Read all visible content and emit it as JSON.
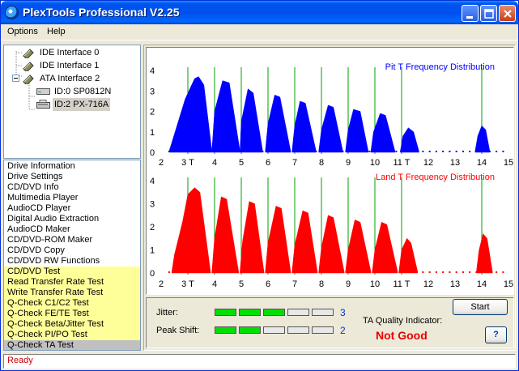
{
  "window": {
    "title": "PlexTools Professional V2.25"
  },
  "menu": [
    {
      "label": "Options",
      "hotkey": "O"
    },
    {
      "label": "Help",
      "hotkey": "H"
    }
  ],
  "tree": [
    {
      "label": "IDE Interface 0",
      "icon": "interface-icon",
      "level": 1
    },
    {
      "label": "IDE Interface 1",
      "icon": "interface-icon",
      "level": 1
    },
    {
      "label": "ATA Interface 2",
      "icon": "interface-icon",
      "level": 0,
      "expanded": true
    },
    {
      "label": "ID:0  SP0812N",
      "icon": "hard-drive-icon",
      "level": 2
    },
    {
      "label": "ID:2  PX-716A",
      "icon": "optical-drive-icon",
      "level": 2,
      "selected": true
    }
  ],
  "functions": [
    {
      "label": "Drive Information",
      "group": "general"
    },
    {
      "label": "Drive Settings",
      "group": "general"
    },
    {
      "label": "CD/DVD Info",
      "group": "general"
    },
    {
      "label": "Multimedia Player",
      "group": "general"
    },
    {
      "label": "AudioCD Player",
      "group": "general"
    },
    {
      "label": "Digital Audio Extraction",
      "group": "general"
    },
    {
      "label": "AudioCD Maker",
      "group": "general"
    },
    {
      "label": "CD/DVD-ROM Maker",
      "group": "general"
    },
    {
      "label": "CD/DVD Copy",
      "group": "general"
    },
    {
      "label": "CD/DVD RW Functions",
      "group": "general"
    },
    {
      "label": "CD/DVD Test",
      "group": "test"
    },
    {
      "label": "Read Transfer Rate Test",
      "group": "test"
    },
    {
      "label": "Write Transfer Rate Test",
      "group": "test"
    },
    {
      "label": "Q-Check C1/C2 Test",
      "group": "test"
    },
    {
      "label": "Q-Check FE/TE Test",
      "group": "test"
    },
    {
      "label": "Q-Check Beta/Jitter Test",
      "group": "test"
    },
    {
      "label": "Q-Check PI/PO Test",
      "group": "test"
    },
    {
      "label": "Q-Check TA Test",
      "group": "test",
      "selected": true
    }
  ],
  "chart_data": [
    {
      "type": "area",
      "title": "Pit T Frequency Distribution",
      "color": "#0000ff",
      "xlim": [
        2,
        15
      ],
      "ylim": [
        0,
        4
      ],
      "xticks": [
        "2",
        "3 T",
        "4",
        "5",
        "6",
        "7",
        "8",
        "9",
        "10",
        "11 T",
        "12",
        "13",
        "14",
        "15"
      ],
      "yticks": [
        "0",
        "1",
        "2",
        "3",
        "4"
      ],
      "reference_lines": [
        3,
        4,
        5,
        6,
        7,
        8,
        9,
        10,
        11,
        14
      ],
      "series": [
        {
          "x": [
            2.3,
            2.9,
            3.25,
            3.4,
            3.6,
            3.9
          ],
          "y": [
            0.05,
            2.6,
            3.6,
            3.7,
            3.3,
            0.05
          ]
        },
        {
          "x": [
            3.9,
            4.0,
            4.3,
            4.55,
            4.95
          ],
          "y": [
            0.05,
            2.0,
            3.5,
            3.4,
            0.05
          ]
        },
        {
          "x": [
            4.95,
            5.0,
            5.25,
            5.45,
            5.8
          ],
          "y": [
            0.05,
            1.5,
            3.1,
            2.9,
            0.05
          ]
        },
        {
          "x": [
            5.9,
            6.0,
            6.25,
            6.45,
            6.85
          ],
          "y": [
            0.05,
            1.4,
            2.8,
            2.7,
            0.05
          ]
        },
        {
          "x": [
            6.9,
            7.0,
            7.2,
            7.4,
            7.8
          ],
          "y": [
            0.05,
            1.3,
            2.5,
            2.4,
            0.05
          ]
        },
        {
          "x": [
            7.9,
            8.0,
            8.25,
            8.45,
            8.8
          ],
          "y": [
            0.05,
            1.1,
            2.3,
            2.2,
            0.05
          ]
        },
        {
          "x": [
            8.9,
            9.0,
            9.2,
            9.45,
            9.75
          ],
          "y": [
            0.05,
            1.1,
            2.1,
            2.0,
            0.05
          ]
        },
        {
          "x": [
            9.85,
            9.95,
            10.2,
            10.4,
            10.75
          ],
          "y": [
            0.05,
            1.0,
            1.9,
            1.8,
            0.05
          ]
        },
        {
          "x": [
            10.95,
            11.05,
            11.25,
            11.45,
            11.65
          ],
          "y": [
            0.05,
            0.8,
            1.2,
            1.0,
            0.05
          ]
        },
        {
          "x": [
            13.75,
            13.85,
            14.0,
            14.15,
            14.3
          ],
          "y": [
            0.05,
            0.8,
            1.3,
            1.1,
            0.05
          ]
        }
      ]
    },
    {
      "type": "area",
      "title": "Land T Frequency Distribution",
      "color": "#ff0000",
      "xlim": [
        2,
        15
      ],
      "ylim": [
        0,
        4
      ],
      "xticks": [
        "2",
        "3 T",
        "4",
        "5",
        "6",
        "7",
        "8",
        "9",
        "10",
        "11 T",
        "12",
        "13",
        "14",
        "15"
      ],
      "yticks": [
        "0",
        "1",
        "2",
        "3",
        "4"
      ],
      "reference_lines": [
        3,
        4,
        5,
        6,
        7,
        8,
        9,
        10,
        11,
        14
      ],
      "series": [
        {
          "x": [
            2.4,
            2.5,
            2.8,
            3.0,
            3.25,
            3.45,
            3.85
          ],
          "y": [
            0.05,
            0.8,
            2.2,
            3.4,
            3.7,
            3.5,
            0.05
          ]
        },
        {
          "x": [
            3.9,
            4.0,
            4.25,
            4.45,
            4.9
          ],
          "y": [
            0.05,
            1.5,
            3.3,
            3.2,
            0.05
          ]
        },
        {
          "x": [
            4.95,
            5.05,
            5.3,
            5.5,
            5.85
          ],
          "y": [
            0.05,
            1.4,
            3.1,
            3.0,
            0.05
          ]
        },
        {
          "x": [
            5.9,
            6.0,
            6.3,
            6.5,
            6.85
          ],
          "y": [
            0.05,
            1.3,
            2.9,
            2.8,
            0.05
          ]
        },
        {
          "x": [
            6.9,
            7.0,
            7.3,
            7.5,
            7.85
          ],
          "y": [
            0.05,
            1.2,
            2.7,
            2.6,
            0.05
          ]
        },
        {
          "x": [
            7.9,
            8.0,
            8.25,
            8.45,
            8.85
          ],
          "y": [
            0.05,
            1.1,
            2.5,
            2.4,
            0.05
          ]
        },
        {
          "x": [
            8.9,
            9.0,
            9.25,
            9.45,
            9.85
          ],
          "y": [
            0.05,
            1.0,
            2.3,
            2.2,
            0.05
          ]
        },
        {
          "x": [
            9.9,
            10.0,
            10.25,
            10.45,
            10.85
          ],
          "y": [
            0.05,
            1.0,
            2.2,
            2.1,
            0.05
          ]
        },
        {
          "x": [
            10.9,
            11.0,
            11.2,
            11.35,
            11.6
          ],
          "y": [
            0.05,
            1.0,
            1.5,
            1.3,
            0.05
          ]
        },
        {
          "x": [
            13.8,
            13.9,
            14.05,
            14.2,
            14.4
          ],
          "y": [
            0.05,
            1.0,
            1.7,
            1.5,
            0.05
          ]
        }
      ]
    }
  ],
  "meters": {
    "segments": 5,
    "jitter": {
      "label": "Jitter:",
      "value": 3
    },
    "peak_shift": {
      "label": "Peak Shift:",
      "value": 2
    }
  },
  "ta_quality": {
    "label": "TA Quality Indicator:",
    "value": "Not Good",
    "color": "#e80000"
  },
  "buttons": {
    "start": "Start",
    "start_hotkey": "S",
    "help": "?"
  },
  "status": {
    "text": "Ready"
  },
  "colors": {
    "pit": "#0000ff",
    "land": "#ff0000",
    "reference_line": "#00a000",
    "meter_on": "#00e000",
    "test_item_bg": "#ffff99"
  }
}
